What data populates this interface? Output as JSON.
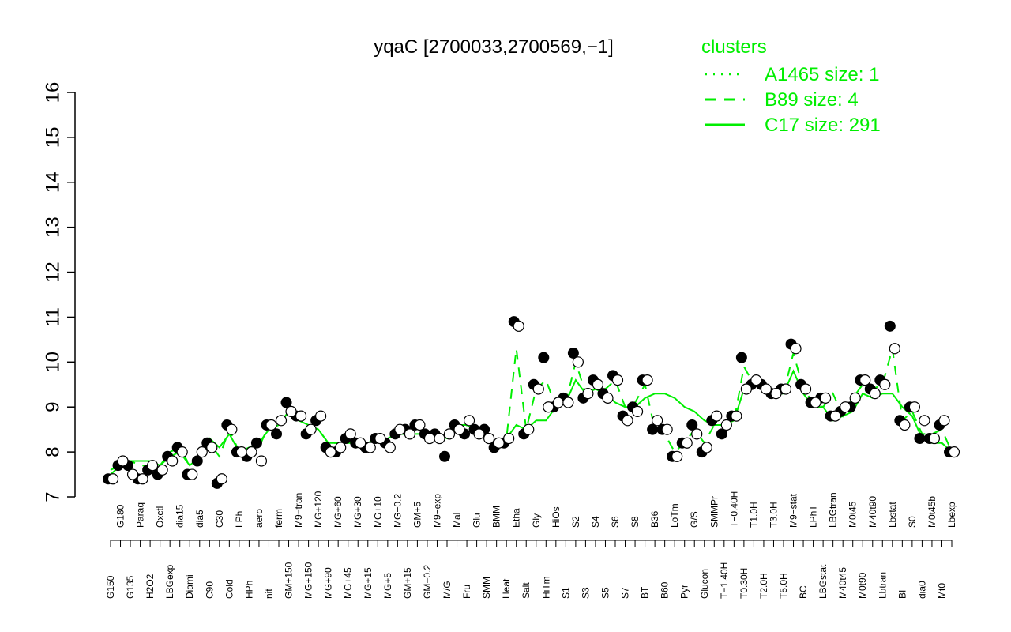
{
  "chart_data": {
    "type": "line",
    "title": "yqaC [2700033,2700569,−1]",
    "ylim": [
      7,
      16
    ],
    "y_ticks": [
      7,
      8,
      9,
      10,
      11,
      12,
      13,
      14,
      15,
      16
    ],
    "x_tick_labels": [
      "G150",
      "G180",
      "G135",
      "Paraq",
      "H2O2",
      "Oxctl",
      "LBGexp",
      "dia15",
      "Diami",
      "dia5",
      "C90",
      "C30",
      "Cold",
      "LPh",
      "HPh",
      "aero",
      "nit",
      "ferm",
      "GM+150",
      "M9−tran",
      "MG+150",
      "MG+120",
      "MG+90",
      "MG+60",
      "MG+45",
      "MG+30",
      "MG+15",
      "MG+10",
      "MG+5",
      "MG−0.2",
      "GM+15",
      "GM+5",
      "GM−0.2",
      "M9−exp",
      "M/G",
      "Mal",
      "Fru",
      "Glu",
      "SMM",
      "BMM",
      "Heat",
      "Etha",
      "Salt",
      "Gly",
      "HiTm",
      "HiOs",
      "S1",
      "S2",
      "S3",
      "S4",
      "S5",
      "S6",
      "S7",
      "S8",
      "BT",
      "B36",
      "B60",
      "LoTm",
      "Pyr",
      "G/S",
      "Glucon",
      "SMMPr",
      "T−1.40H",
      "T−0.40H",
      "T0.30H",
      "T1.0H",
      "T2.0H",
      "T3.0H",
      "T5.0H",
      "M9−stat",
      "BC",
      "LPhT",
      "LBGstat",
      "LBGtran",
      "M40t45",
      "M0t45",
      "M0t90",
      "M40t90",
      "Lbtran",
      "Lbstat",
      "BI",
      "S0",
      "dia0",
      "M0t45b",
      "Mt0",
      "Lbexp"
    ],
    "series": [
      {
        "name": "C17 size: 291",
        "style": "solid",
        "color": "#00ee00",
        "values": [
          7.5,
          7.7,
          7.8,
          7.8,
          7.8,
          7.7,
          7.9,
          8.0,
          7.7,
          7.9,
          8.3,
          8.1,
          8.4,
          8.0,
          8.1,
          8.2,
          8.5,
          8.6,
          8.9,
          8.7,
          8.6,
          8.5,
          8.2,
          8.2,
          8.2,
          8.2,
          8.2,
          8.3,
          8.3,
          8.4,
          8.4,
          8.4,
          8.4,
          8.4,
          8.3,
          8.6,
          8.6,
          8.5,
          8.4,
          8.2,
          8.3,
          8.6,
          8.5,
          8.7,
          8.7,
          9.0,
          9.1,
          9.6,
          9.3,
          9.4,
          9.3,
          9.1,
          9.0,
          9.0,
          9.2,
          9.3,
          9.3,
          9.2,
          9.0,
          8.9,
          8.7,
          8.6,
          8.6,
          8.7,
          9.4,
          9.6,
          9.4,
          9.3,
          9.3,
          9.8,
          9.3,
          9.0,
          9.0,
          8.7,
          8.8,
          8.9,
          9.3,
          9.2,
          9.3,
          9.3,
          9.0,
          8.8,
          8.3,
          8.2,
          8.2,
          8.0
        ]
      },
      {
        "name": "B89 size: 4",
        "style": "dashed",
        "color": "#00ee00",
        "values": [
          7.6,
          7.7,
          7.8,
          7.7,
          7.7,
          7.7,
          8.0,
          8.1,
          7.7,
          7.9,
          8.2,
          7.9,
          8.5,
          8.0,
          8.0,
          8.1,
          8.6,
          8.6,
          8.9,
          8.7,
          8.6,
          8.5,
          8.2,
          8.2,
          8.2,
          8.2,
          8.2,
          8.3,
          8.3,
          8.4,
          8.4,
          8.4,
          8.4,
          8.4,
          8.3,
          8.5,
          8.6,
          8.5,
          8.3,
          8.2,
          8.3,
          10.3,
          8.5,
          9.4,
          9.6,
          9.0,
          9.1,
          10.0,
          9.3,
          9.6,
          9.4,
          9.6,
          9.0,
          9.1,
          9.5,
          8.5,
          8.4,
          8.0,
          8.2,
          8.5,
          8.2,
          8.6,
          8.6,
          8.7,
          9.9,
          9.5,
          9.4,
          9.3,
          9.3,
          10.2,
          9.4,
          9.1,
          9.0,
          9.3,
          8.8,
          9.2,
          9.5,
          9.4,
          9.5,
          10.3,
          8.7,
          8.9,
          8.4,
          8.4,
          8.5,
          8.0
        ]
      },
      {
        "name": "A1465 size: 1",
        "style": "dotted",
        "color": "#00ee00",
        "values": []
      }
    ],
    "points_black": [
      7.4,
      7.7,
      7.7,
      7.4,
      7.6,
      7.5,
      7.9,
      8.1,
      7.5,
      7.8,
      8.2,
      7.3,
      8.6,
      8.0,
      7.9,
      8.2,
      8.6,
      8.4,
      9.1,
      8.8,
      8.4,
      8.7,
      8.1,
      8.0,
      8.3,
      8.2,
      8.1,
      8.3,
      8.2,
      8.4,
      8.5,
      8.6,
      8.4,
      8.4,
      7.9,
      8.6,
      8.4,
      8.5,
      8.5,
      8.1,
      8.2,
      10.9,
      8.4,
      9.5,
      10.1,
      9.0,
      9.2,
      10.2,
      9.2,
      9.6,
      9.3,
      9.7,
      8.8,
      9.0,
      9.6,
      8.5,
      8.5,
      7.9,
      8.2,
      8.6,
      8.0,
      8.7,
      8.4,
      8.8,
      10.1,
      9.5,
      9.5,
      9.3,
      9.4,
      10.4,
      9.5,
      9.1,
      9.2,
      8.8,
      8.9,
      9.0,
      9.6,
      9.4,
      9.6,
      10.8,
      8.7,
      9.0,
      8.3,
      8.3,
      8.6,
      8.0
    ],
    "points_white": [
      7.4,
      7.8,
      7.5,
      7.4,
      7.7,
      7.6,
      7.8,
      8.0,
      7.5,
      8.0,
      8.1,
      7.4,
      8.5,
      8.0,
      8.0,
      7.8,
      8.6,
      8.7,
      8.9,
      8.8,
      8.5,
      8.8,
      8.0,
      8.1,
      8.4,
      8.2,
      8.1,
      8.3,
      8.1,
      8.5,
      8.4,
      8.6,
      8.3,
      8.3,
      8.4,
      8.5,
      8.7,
      8.4,
      8.3,
      8.2,
      8.3,
      10.8,
      8.5,
      9.4,
      9.0,
      9.1,
      9.1,
      10.0,
      9.3,
      9.5,
      9.2,
      9.6,
      8.7,
      8.9,
      9.6,
      8.7,
      8.5,
      7.9,
      8.2,
      8.4,
      8.1,
      8.8,
      8.6,
      8.8,
      9.4,
      9.6,
      9.4,
      9.3,
      9.4,
      10.3,
      9.4,
      9.1,
      9.2,
      8.8,
      9.0,
      9.2,
      9.6,
      9.3,
      9.5,
      10.3,
      8.6,
      9.0,
      8.7,
      8.3,
      8.7,
      8.0
    ],
    "legend": {
      "title": "clusters",
      "placement": "top-right",
      "entries": [
        "A1465 size: 1",
        "B89 size: 4",
        "C17 size: 291"
      ]
    },
    "colors": {
      "series": "#00ee00",
      "axis": "#000000",
      "points": "#000000"
    },
    "grid": false
  }
}
